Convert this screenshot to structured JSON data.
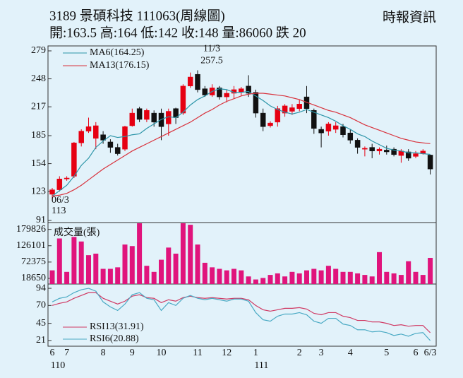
{
  "header": {
    "title": "3189 景碩科技 111063(周線圖)",
    "source": "時報資訊",
    "summary": "開:163.5 高:164 低:142 收:148 量:86060 跌 20"
  },
  "chart_data": [
    {
      "type": "candlestick",
      "open": [
        120,
        125,
        137,
        140,
        177,
        190,
        182,
        186,
        178,
        172,
        170,
        196,
        215,
        203,
        210,
        210,
        198,
        215,
        210,
        240,
        253,
        237,
        230,
        238,
        228,
        232,
        233,
        240,
        233,
        210,
        196,
        200,
        210,
        212,
        215,
        228,
        213,
        192,
        190,
        192,
        195,
        188,
        180,
        170,
        172,
        168,
        169,
        170,
        163,
        167,
        162,
        165,
        163.5
      ],
      "high": [
        127,
        140,
        140,
        178,
        192,
        205,
        200,
        190,
        181,
        176,
        196,
        215,
        217,
        215,
        213,
        215,
        215,
        216,
        242,
        255,
        257.5,
        240,
        242,
        240,
        236,
        240,
        239,
        252,
        236,
        215,
        201,
        218,
        220,
        220,
        225,
        240,
        215,
        195,
        200,
        200,
        198,
        192,
        182,
        173,
        176,
        172,
        174,
        172,
        170,
        170,
        168,
        170,
        164
      ],
      "low": [
        113,
        123,
        135,
        138,
        173,
        188,
        170,
        176,
        166,
        163,
        168,
        195,
        200,
        200,
        195,
        180,
        185,
        198,
        208,
        238,
        233,
        228,
        228,
        225,
        222,
        226,
        229,
        228,
        205,
        190,
        194,
        195,
        206,
        208,
        212,
        210,
        187,
        172,
        185,
        188,
        183,
        176,
        165,
        162,
        160,
        164,
        164,
        162,
        155,
        157,
        160,
        164,
        142
      ],
      "close": [
        125,
        137,
        138,
        177,
        190,
        195,
        196,
        180,
        172,
        165,
        195,
        210,
        203,
        213,
        200,
        195,
        212,
        205,
        240,
        250,
        236,
        230,
        238,
        228,
        232,
        236,
        237,
        232,
        210,
        195,
        199,
        215,
        218,
        216,
        220,
        215,
        193,
        188,
        198,
        196,
        186,
        180,
        172,
        171,
        168,
        170,
        167,
        164,
        168,
        160,
        165,
        168,
        148
      ],
      "up_color": "#e60012",
      "down_color": "#111111",
      "series": [
        {
          "name": "MA6(164.25)",
          "color": "#2c95a8",
          "values": [
            118,
            124,
            130,
            140,
            152,
            160,
            172,
            179,
            185,
            183,
            184,
            186,
            187,
            193,
            198,
            203,
            206,
            205,
            211,
            219,
            225,
            229,
            234,
            237,
            236,
            233,
            233,
            234,
            229,
            224,
            218,
            214,
            211,
            209,
            211,
            214,
            211,
            208,
            205,
            201,
            196,
            192,
            187,
            184,
            179,
            175,
            171,
            169,
            168,
            166,
            166,
            165,
            164.25
          ]
        },
        {
          "name": "MA13(176.15)",
          "color": "#d8323c",
          "values": [
            118,
            119,
            121,
            125,
            130,
            136,
            142,
            148,
            153,
            158,
            163,
            168,
            172,
            176,
            180,
            184,
            188,
            192,
            196,
            200,
            205,
            210,
            214,
            219,
            223,
            226,
            229,
            231,
            232,
            232,
            231,
            230,
            229,
            227,
            225,
            222,
            219,
            216,
            213,
            211,
            208,
            205,
            201,
            197,
            194,
            191,
            188,
            185,
            182,
            180,
            178,
            177,
            176.15
          ]
        }
      ],
      "ylim": [
        91,
        279
      ],
      "yticks": [
        279,
        248,
        217,
        185,
        154,
        123,
        91
      ],
      "high_label": [
        "11/3",
        "257.5"
      ],
      "low_label": [
        "06/3",
        "113"
      ]
    },
    {
      "type": "bar",
      "title": "成交量(張)",
      "color": "#e0147c",
      "values": [
        45000,
        150000,
        40000,
        155000,
        140000,
        95000,
        100000,
        50000,
        50000,
        55000,
        130000,
        125000,
        200000,
        60000,
        40000,
        80000,
        120000,
        100000,
        200000,
        195000,
        130000,
        70000,
        55000,
        50000,
        45000,
        50000,
        45000,
        25000,
        15000,
        20000,
        30000,
        35000,
        25000,
        40000,
        35000,
        45000,
        50000,
        45000,
        60000,
        50000,
        40000,
        40000,
        35000,
        30000,
        25000,
        105000,
        40000,
        35000,
        30000,
        75000,
        40000,
        30000,
        86060
      ],
      "ylim": [
        0,
        200000
      ],
      "yticks": [
        179826,
        126101,
        72375,
        18650
      ]
    },
    {
      "type": "line",
      "series": [
        {
          "name": "RSI13(31.91)",
          "color": "#d03a64",
          "values": [
            70,
            73,
            75,
            80,
            84,
            88,
            88,
            80,
            76,
            72,
            76,
            83,
            85,
            81,
            80,
            74,
            78,
            76,
            81,
            83,
            81,
            80,
            81,
            80,
            79,
            80,
            80,
            78,
            70,
            64,
            62,
            64,
            66,
            66,
            67,
            65,
            59,
            57,
            60,
            60,
            55,
            53,
            49,
            49,
            47,
            47,
            45,
            42,
            43,
            41,
            42,
            42,
            31.91
          ]
        },
        {
          "name": "RSI6(20.88)",
          "color": "#4aaac4",
          "values": [
            75,
            80,
            82,
            88,
            92,
            94,
            90,
            75,
            68,
            63,
            72,
            85,
            88,
            80,
            78,
            63,
            74,
            70,
            80,
            84,
            80,
            78,
            80,
            78,
            76,
            79,
            79,
            76,
            60,
            50,
            48,
            55,
            58,
            58,
            60,
            57,
            48,
            45,
            52,
            52,
            44,
            42,
            36,
            36,
            33,
            34,
            32,
            28,
            30,
            27,
            31,
            32,
            20.88
          ]
        }
      ],
      "ylim": [
        13,
        100
      ],
      "yticks": [
        94,
        70,
        45,
        21
      ],
      "categories": [
        "6",
        null,
        "7",
        null,
        null,
        null,
        null,
        "8",
        null,
        null,
        null,
        "9",
        null,
        null,
        null,
        "10",
        null,
        null,
        null,
        null,
        "11",
        null,
        null,
        null,
        "12",
        null,
        null,
        null,
        "1",
        null,
        null,
        null,
        null,
        null,
        "2",
        null,
        null,
        "3",
        null,
        null,
        null,
        "4",
        null,
        null,
        null,
        null,
        "5",
        null,
        null,
        null,
        "6",
        null,
        "6/3"
      ],
      "year_labels": [
        "110",
        null,
        null,
        null,
        null,
        null,
        null,
        null,
        null,
        null,
        null,
        null,
        null,
        null,
        null,
        null,
        null,
        null,
        null,
        null,
        null,
        null,
        null,
        null,
        null,
        null,
        null,
        null,
        "111",
        null,
        null,
        null,
        null,
        null,
        null,
        null,
        null,
        null,
        null,
        null,
        null,
        null,
        null,
        null,
        null,
        null,
        null,
        null,
        null,
        null,
        null,
        null,
        null
      ]
    }
  ]
}
